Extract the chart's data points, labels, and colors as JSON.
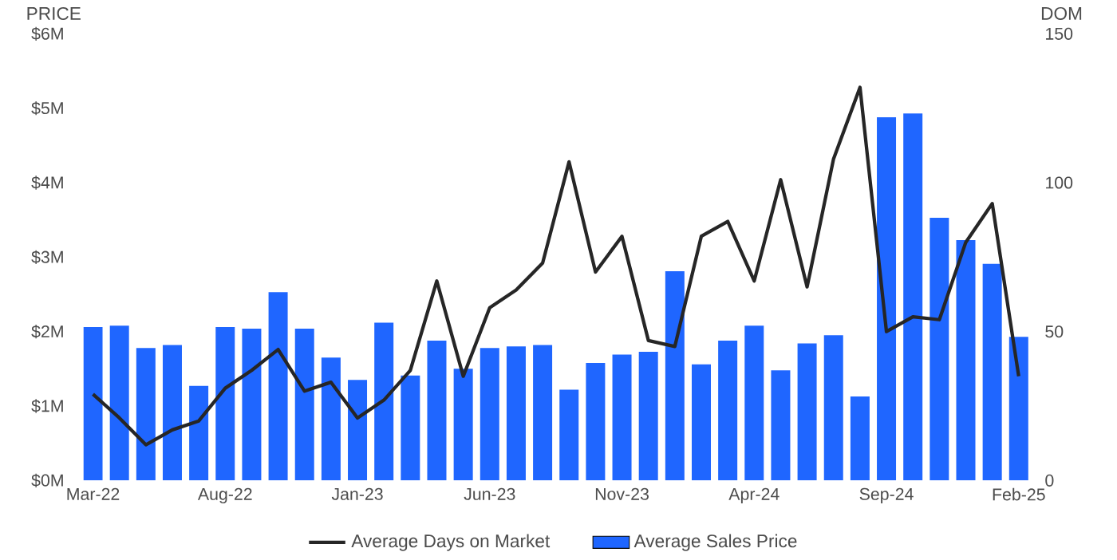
{
  "chart_data": {
    "type": "bar",
    "ylabel": "PRICE",
    "y2label": "DOM",
    "categories": [
      "Mar-22",
      null,
      null,
      null,
      null,
      "Aug-22",
      null,
      null,
      null,
      null,
      "Jan-23",
      null,
      null,
      null,
      null,
      "Jun-23",
      null,
      null,
      null,
      null,
      "Nov-23",
      null,
      null,
      null,
      null,
      "Apr-24",
      null,
      null,
      null,
      null,
      "Sep-24",
      null,
      null,
      null,
      null,
      "Feb-25"
    ],
    "series": [
      {
        "name": "Average Sales Price",
        "axis": "y",
        "color": "#1f66ff",
        "values": [
          2.06,
          2.08,
          1.78,
          1.82,
          1.27,
          2.06,
          2.04,
          2.53,
          2.04,
          1.65,
          1.35,
          2.12,
          1.41,
          1.88,
          1.5,
          1.78,
          1.8,
          1.82,
          1.22,
          1.58,
          1.69,
          1.73,
          2.81,
          1.56,
          1.88,
          2.08,
          1.48,
          1.84,
          1.95,
          1.13,
          4.88,
          4.93,
          3.53,
          3.23,
          2.91,
          1.93
        ]
      },
      {
        "name": "Average Days on Market",
        "type": "line",
        "axis": "y2",
        "color": "#262626",
        "values": [
          29,
          21,
          12,
          17,
          20,
          31,
          37,
          44,
          30,
          33,
          21,
          27,
          37,
          67,
          35,
          58,
          64,
          73,
          107,
          70,
          82,
          47,
          45,
          82,
          87,
          67,
          101,
          65,
          108,
          132,
          50,
          55,
          54,
          80,
          93,
          35
        ]
      }
    ],
    "ylim": [
      0,
      6
    ],
    "yticks": [
      {
        "value": 0,
        "label": "$0M"
      },
      {
        "value": 1,
        "label": "$1M"
      },
      {
        "value": 2,
        "label": "$2M"
      },
      {
        "value": 3,
        "label": "$3M"
      },
      {
        "value": 4,
        "label": "$4M"
      },
      {
        "value": 5,
        "label": "$5M"
      },
      {
        "value": 6,
        "label": "$6M"
      }
    ],
    "y2lim": [
      0,
      150
    ],
    "y2ticks": [
      0,
      50,
      100,
      150
    ],
    "grid": false,
    "legend": "bottom",
    "marker": "none",
    "line_style": "solid"
  }
}
